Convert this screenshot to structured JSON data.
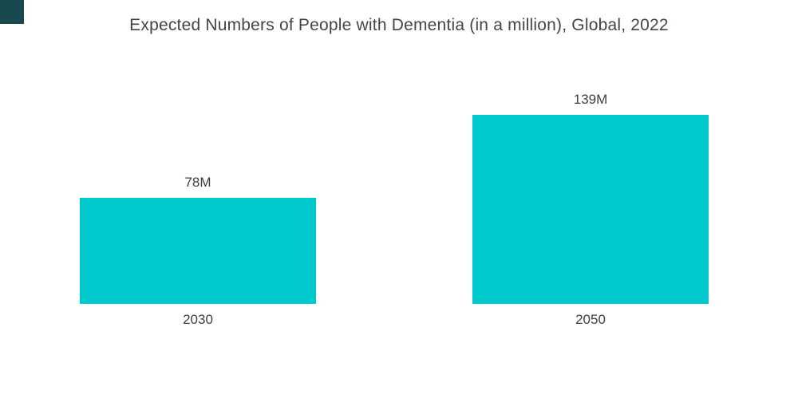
{
  "brand": {
    "logo_color": "#17494F"
  },
  "chart_data": {
    "type": "bar",
    "title": "Expected Numbers of People with Dementia (in a million), Global, 2022",
    "categories": [
      "2030",
      "2050"
    ],
    "values": [
      78,
      139
    ],
    "value_labels": [
      "78M",
      "139M"
    ],
    "xlabel": "",
    "ylabel": "",
    "ylim": [
      0,
      139
    ],
    "bar_color": "#00C9CE",
    "grid": false,
    "legend": false,
    "axes_hidden": true
  }
}
